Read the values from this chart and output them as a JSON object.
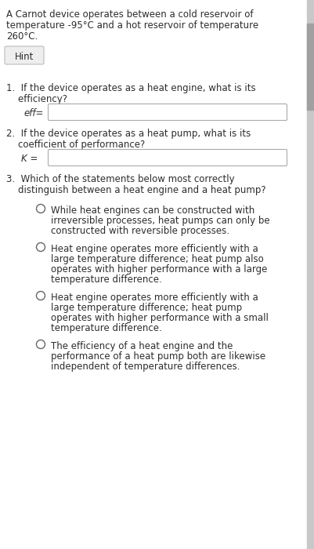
{
  "bg_color": "#ffffff",
  "text_color": "#2d2d2d",
  "hint_label": "Hint",
  "font_size": 8.5,
  "font_size_small": 8.0,
  "scrollbar_color": "#c8c8c8",
  "scrollbar_thumb": "#a0a0a0",
  "box_edge_color": "#aaaaaa",
  "circle_edge_color": "#666666",
  "header_lines": [
    "A Carnot device operates between a cold reservoir of",
    "temperature -95°C and a hot reservoir of temperature",
    "260°C."
  ],
  "q1_lines": [
    "1.  If the device operates as a heat engine, what is its",
    "    efficiency?"
  ],
  "q1_label": "eff=",
  "q2_lines": [
    "2.  If the device operates as a heat pump, what is its",
    "    coefficient of performance?"
  ],
  "q2_label": "K =",
  "q3_lines": [
    "3.  Which of the statements below most correctly",
    "    distinguish between a heat engine and a heat pump?"
  ],
  "options": [
    [
      "While heat engines can be constructed with",
      "irreversible processes, heat pumps can only be",
      "constructed with reversible processes."
    ],
    [
      "Heat engine operates more efficiently with a",
      "large temperature difference; heat pump also",
      "operates with higher performance with a large",
      "temperature difference."
    ],
    [
      "Heat engine operates more efficiently with a",
      "large temperature difference; heat pump",
      "operates with higher performance with a small",
      "temperature difference."
    ],
    [
      "The efficiency of a heat engine and the",
      "performance of a heat pump both are likewise",
      "independent of temperature differences."
    ]
  ]
}
